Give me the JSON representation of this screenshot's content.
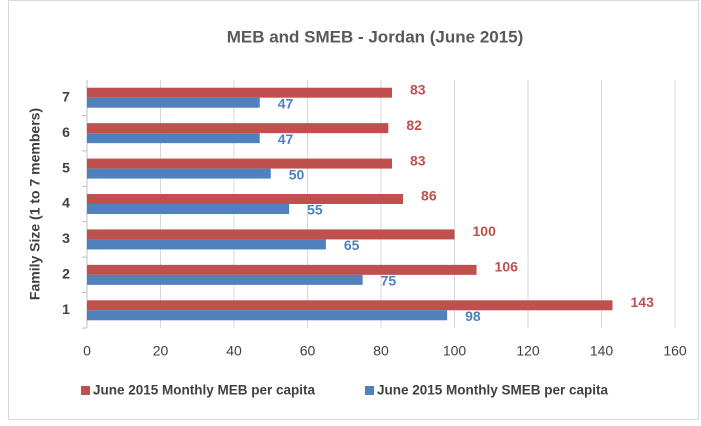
{
  "chart_data": {
    "type": "hbar",
    "title": "MEB and SMEB - Jordan (June 2015)",
    "ylabel": "Family Size (1 to 7 members)",
    "categories": [
      "1",
      "2",
      "3",
      "4",
      "5",
      "6",
      "7"
    ],
    "series": [
      {
        "name": "June 2015 Monthly MEB per capita",
        "color": "#c0504d",
        "values": [
          143,
          106,
          100,
          86,
          83,
          82,
          83
        ]
      },
      {
        "name": "June 2015 Monthly SMEB per capita",
        "color": "#4f81bd",
        "values": [
          98,
          75,
          65,
          55,
          50,
          47,
          47
        ]
      }
    ],
    "xlim": [
      0,
      160
    ],
    "xticks": [
      0,
      20,
      40,
      60,
      80,
      100,
      120,
      140,
      160
    ],
    "grid": true,
    "legend": "bottom"
  }
}
